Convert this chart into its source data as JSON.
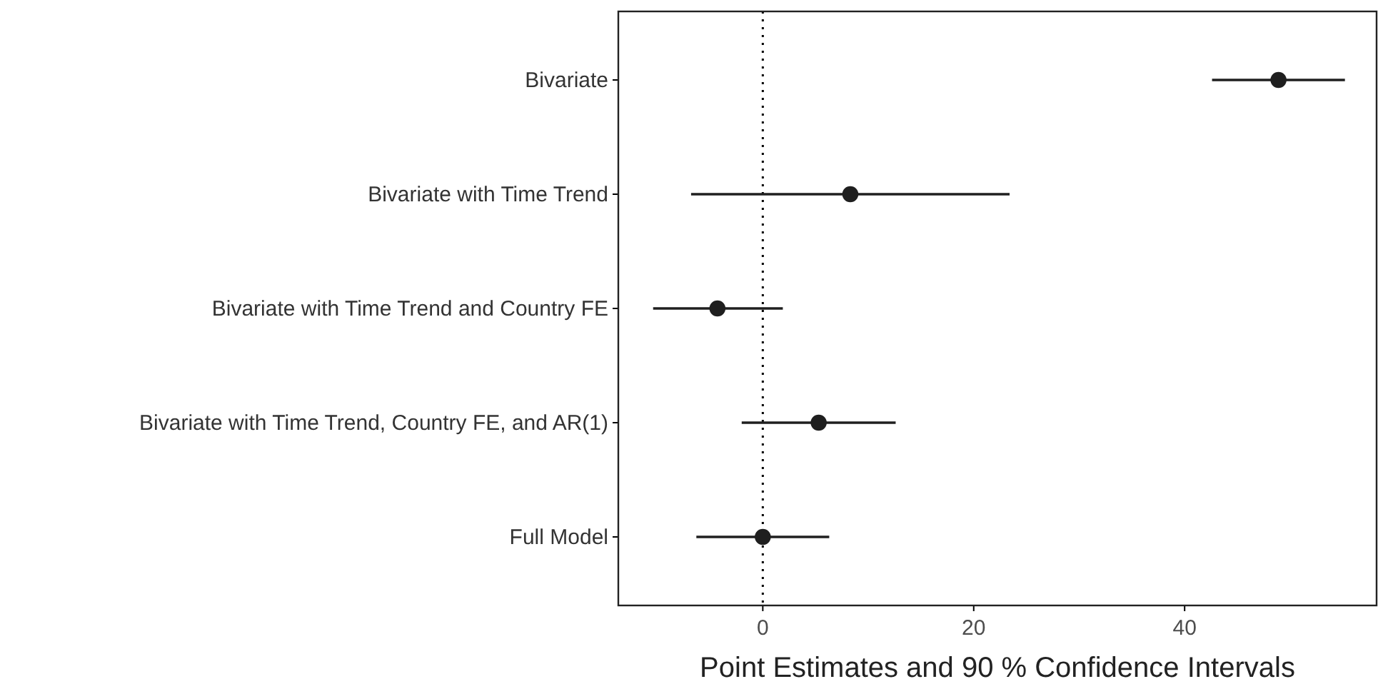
{
  "chart_data": {
    "type": "scatter",
    "orientation": "horizontal",
    "xlabel": "Point Estimates and 90 % Confidence Intervals",
    "categories": [
      "Bivariate",
      "Bivariate with Time Trend",
      "Bivariate with Time Trend and Country FE",
      "Bivariate with Time Trend, Country FE, and AR(1)",
      "Full Model"
    ],
    "series": [
      {
        "color": "#1f1f1f",
        "values": [
          48.9,
          8.3,
          -4.3,
          5.3,
          0
        ],
        "errors": [
          [
            42.6,
            55.2
          ],
          [
            -6.8,
            23.4
          ],
          [
            -10.4,
            1.9
          ],
          [
            -2.0,
            12.6
          ],
          [
            -6.3,
            6.3
          ]
        ]
      }
    ],
    "xlim": [
      -13.7,
      58.2
    ],
    "xticks": [
      0,
      20,
      40
    ],
    "ref_lines": [
      {
        "axis": "x",
        "value": 0,
        "line_style": "dotted",
        "color": "#000000"
      }
    ],
    "marker": "circle",
    "grid": false
  }
}
